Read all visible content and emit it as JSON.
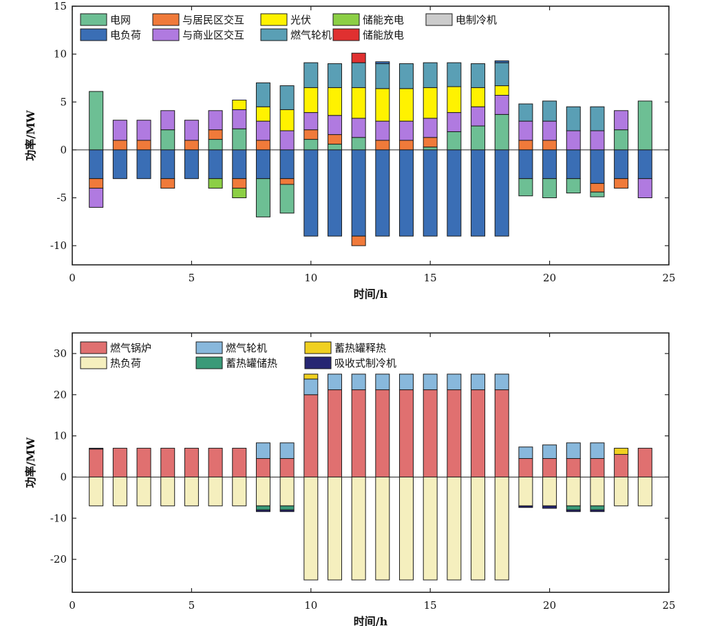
{
  "chart_data": [
    {
      "type": "bar",
      "stacked": true,
      "xlabel": "时间/h",
      "ylabel": "功率/MW",
      "xlim": [
        0,
        25
      ],
      "ylim": [
        -12,
        15
      ],
      "xticks": [
        0,
        5,
        10,
        15,
        20,
        25
      ],
      "yticks": [
        -10,
        -5,
        0,
        5,
        10,
        15
      ],
      "x": [
        1,
        2,
        3,
        4,
        5,
        6,
        7,
        8,
        9,
        10,
        11,
        12,
        13,
        14,
        15,
        16,
        17,
        18,
        19,
        20,
        21,
        22,
        23,
        24
      ],
      "legend": [
        [
          "电网",
          "与居民区交互",
          "光伏",
          "储能充电",
          "电制冷机"
        ],
        [
          "电负荷",
          "与商业区交互",
          "燃气轮机",
          "储能放电"
        ]
      ],
      "legend_position": "top-left",
      "positive_series": [
        {
          "name": "电网",
          "color": "#6dbf94",
          "values": [
            6.1,
            0,
            0,
            2.1,
            0,
            1.1,
            2.2,
            0,
            0,
            1.1,
            0.6,
            1.3,
            0,
            0,
            0.3,
            1.9,
            2.5,
            3.7,
            0,
            0,
            0,
            0,
            2.1,
            5.1
          ]
        },
        {
          "name": "与居民区交互",
          "color": "#f07a3a",
          "values": [
            0,
            1.0,
            1.0,
            0,
            1.0,
            1.0,
            0,
            1.0,
            0,
            1.0,
            1.0,
            0,
            1.0,
            1.0,
            1.0,
            0,
            0,
            0,
            1.0,
            1.0,
            0,
            0,
            0,
            0
          ]
        },
        {
          "name": "与商业区交互",
          "color": "#b07ae0",
          "values": [
            0,
            2.1,
            2.1,
            2.0,
            2.1,
            2.0,
            2.0,
            2.0,
            2.0,
            1.8,
            2.0,
            2.0,
            2.0,
            2.0,
            2.0,
            2.0,
            2.0,
            2.0,
            2.0,
            2.0,
            2.0,
            2.0,
            2.0,
            0
          ]
        },
        {
          "name": "光伏",
          "color": "#fff200",
          "values": [
            0,
            0,
            0,
            0,
            0,
            0,
            1.0,
            1.5,
            2.2,
            2.6,
            2.9,
            3.2,
            3.4,
            3.4,
            3.2,
            2.7,
            2.0,
            1.0,
            0,
            0,
            0,
            0,
            0,
            0
          ]
        },
        {
          "name": "燃气轮机",
          "color": "#5a9fb5",
          "values": [
            0,
            0,
            0,
            0,
            0,
            0,
            0,
            2.5,
            2.5,
            2.6,
            2.5,
            2.6,
            2.6,
            2.6,
            2.6,
            2.5,
            2.5,
            2.4,
            1.8,
            2.1,
            2.5,
            2.5,
            0,
            0
          ]
        },
        {
          "name": "储能放电",
          "color": "#e03030",
          "values": [
            0,
            0,
            0,
            0,
            0,
            0,
            0,
            0,
            0,
            0,
            0,
            1.0,
            0,
            0,
            0,
            0,
            0,
            0,
            0,
            0,
            0,
            0,
            0,
            0
          ]
        },
        {
          "name": "电负荷",
          "color": "#3a6eb5",
          "values": [
            0,
            0,
            0,
            0,
            0,
            0,
            0,
            0,
            0,
            0,
            0,
            0,
            0.2,
            0,
            0,
            0,
            0,
            0.2,
            0,
            0,
            0,
            0,
            0,
            0
          ]
        }
      ],
      "negative_series": [
        {
          "name": "电负荷",
          "color": "#3a6eb5",
          "values": [
            -3.0,
            -3.0,
            -3.0,
            -3.0,
            -3.0,
            -3.0,
            -3.0,
            -3.0,
            -3.0,
            -9.0,
            -9.0,
            -9.0,
            -9.0,
            -9.0,
            -9.0,
            -9.0,
            -9.0,
            -9.0,
            -3.0,
            -3.0,
            -3.0,
            -3.5,
            -3.0,
            -3.0
          ]
        },
        {
          "name": "与居民区交互",
          "color": "#f07a3a",
          "values": [
            -1.0,
            0,
            0,
            -1.0,
            0,
            0,
            -1.0,
            0,
            -0.6,
            0,
            0,
            -1.0,
            0,
            0,
            0,
            0,
            0,
            0,
            0,
            0,
            0,
            -0.9,
            -1.0,
            0
          ]
        },
        {
          "name": "电网",
          "color": "#6dbf94",
          "values": [
            0,
            0,
            0,
            0,
            0,
            0,
            0,
            -4.0,
            -3.0,
            0,
            0,
            0,
            0,
            0,
            0,
            0,
            0,
            0,
            -1.8,
            -2.0,
            -1.5,
            -0.5,
            0,
            0
          ]
        },
        {
          "name": "储能充电",
          "color": "#8ccf45",
          "values": [
            0,
            0,
            0,
            0,
            0,
            -1.0,
            -1.0,
            0,
            0,
            0,
            0,
            0,
            0,
            0,
            0,
            0,
            0,
            0,
            0,
            0,
            0,
            0,
            0,
            0
          ]
        },
        {
          "name": "与商业区交互",
          "color": "#b07ae0",
          "values": [
            -2.0,
            0,
            0,
            0,
            0,
            0,
            0,
            0,
            0,
            0,
            0,
            0,
            0,
            0,
            0,
            0,
            0,
            0,
            0,
            0,
            0,
            0,
            0,
            -2.0
          ]
        }
      ]
    },
    {
      "type": "bar",
      "stacked": true,
      "xlabel": "时间/h",
      "ylabel": "功率/MW",
      "xlim": [
        0,
        25
      ],
      "ylim": [
        -28,
        35
      ],
      "xticks": [
        0,
        5,
        10,
        15,
        20,
        25
      ],
      "yticks": [
        -20,
        -10,
        0,
        10,
        20,
        30
      ],
      "x": [
        1,
        2,
        3,
        4,
        5,
        6,
        7,
        8,
        9,
        10,
        11,
        12,
        13,
        14,
        15,
        16,
        17,
        18,
        19,
        20,
        21,
        22,
        23,
        24
      ],
      "legend": [
        [
          "燃气锅炉",
          "燃气轮机",
          "蓄热罐释热"
        ],
        [
          "热负荷",
          "蓄热罐储热",
          "吸收式制冷机"
        ]
      ],
      "legend_position": "top-left",
      "positive_series": [
        {
          "name": "燃气锅炉",
          "color": "#e07070",
          "values": [
            6.8,
            7.0,
            7.0,
            7.0,
            7.0,
            7.0,
            7.0,
            4.5,
            4.5,
            20.0,
            21.2,
            21.2,
            21.2,
            21.2,
            21.2,
            21.2,
            21.2,
            21.2,
            4.5,
            4.5,
            4.5,
            4.5,
            5.5,
            7.0
          ]
        },
        {
          "name": "燃气轮机",
          "color": "#88b8dc",
          "values": [
            0,
            0,
            0,
            0,
            0,
            0,
            0,
            3.8,
            3.8,
            3.8,
            3.8,
            3.8,
            3.8,
            3.8,
            3.8,
            3.8,
            3.8,
            3.8,
            2.8,
            3.3,
            3.8,
            3.8,
            0,
            0
          ]
        },
        {
          "name": "蓄热罐释热",
          "color": "#f0d020",
          "values": [
            0,
            0,
            0,
            0,
            0,
            0,
            0,
            0,
            0,
            1.2,
            0,
            0,
            0,
            0,
            0,
            0,
            0,
            0,
            0,
            0,
            0,
            0,
            1.5,
            0
          ]
        },
        {
          "name": "吸收式制冷机",
          "color": "#262673",
          "values": [
            0.2,
            0,
            0,
            0,
            0,
            0,
            0,
            0,
            0,
            0,
            0,
            0,
            0,
            0,
            0,
            0,
            0,
            0,
            0,
            0,
            0,
            0,
            0,
            0
          ]
        }
      ],
      "negative_series": [
        {
          "name": "热负荷",
          "color": "#f5efbe",
          "values": [
            -7.0,
            -7.0,
            -7.0,
            -7.0,
            -7.0,
            -7.0,
            -7.0,
            -7.0,
            -7.0,
            -25.0,
            -25.0,
            -25.0,
            -25.0,
            -25.0,
            -25.0,
            -25.0,
            -25.0,
            -25.0,
            -7.0,
            -7.0,
            -7.0,
            -7.0,
            -7.0,
            -7.0
          ]
        },
        {
          "name": "蓄热罐储热",
          "color": "#3a9a78",
          "values": [
            0,
            0,
            0,
            0,
            0,
            0,
            0,
            -1.0,
            -1.0,
            0,
            0,
            0,
            0,
            0,
            0,
            0,
            0,
            0,
            0,
            0,
            -1.0,
            -1.0,
            0,
            0
          ]
        },
        {
          "name": "吸收式制冷机",
          "color": "#262673",
          "values": [
            0,
            0,
            0,
            0,
            0,
            0,
            0,
            -0.4,
            -0.4,
            0,
            0,
            0,
            0,
            0,
            0,
            0,
            0,
            0,
            -0.4,
            -0.6,
            -0.4,
            -0.4,
            0,
            0
          ]
        }
      ]
    }
  ]
}
